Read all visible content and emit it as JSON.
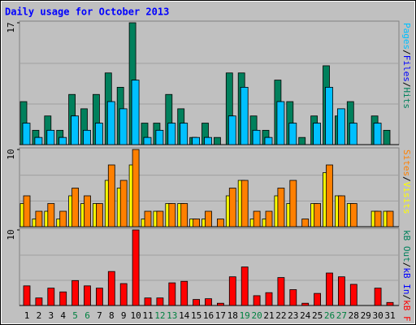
{
  "title": "Daily usage for October 2013",
  "legend_separator": "/",
  "weekend_days": [
    "5",
    "6",
    "12",
    "13",
    "19",
    "20",
    "26",
    "27"
  ],
  "weekend_color": "#008040",
  "chart_data": [
    {
      "type": "bar",
      "ylim": [
        0,
        17
      ],
      "yticks": [
        17
      ],
      "series": [
        {
          "name": "Hits",
          "color": "#00805c",
          "values": [
            6,
            2,
            4,
            2,
            7,
            5,
            7,
            10,
            8,
            17,
            3,
            3,
            7,
            5,
            1,
            3,
            1,
            10,
            10,
            4,
            2,
            9,
            6,
            1,
            4,
            11,
            4,
            6,
            0,
            4,
            2
          ]
        },
        {
          "name": "Files",
          "color": "#0000ff",
          "values": [
            3,
            1,
            2,
            1,
            4,
            2,
            3,
            6,
            5,
            9,
            1,
            2,
            3,
            3,
            1,
            1,
            0,
            4,
            8,
            2,
            1,
            6,
            3,
            0,
            3,
            8,
            5,
            3,
            0,
            3,
            0
          ]
        },
        {
          "name": "Pages",
          "color": "#00c0ff",
          "values": [
            3,
            1,
            2,
            1,
            4,
            2,
            3,
            6,
            5,
            9,
            1,
            2,
            3,
            3,
            1,
            1,
            0,
            4,
            8,
            2,
            1,
            6,
            3,
            0,
            3,
            8,
            5,
            3,
            0,
            3,
            0
          ]
        }
      ]
    },
    {
      "type": "bar",
      "ylim": [
        0,
        10
      ],
      "yticks": [
        10
      ],
      "series": [
        {
          "name": "Visits",
          "color": "#ffff00",
          "values": [
            3,
            1,
            2,
            1,
            4,
            3,
            3,
            6,
            5,
            8,
            1,
            2,
            3,
            3,
            1,
            1,
            0,
            4,
            6,
            1,
            1,
            4,
            3,
            0,
            3,
            7,
            4,
            3,
            0,
            2,
            2
          ]
        },
        {
          "name": "Sites",
          "color": "#ff8000",
          "values": [
            4,
            2,
            3,
            2,
            5,
            4,
            3,
            8,
            6,
            10,
            2,
            2,
            3,
            3,
            1,
            2,
            1,
            5,
            6,
            2,
            2,
            5,
            6,
            1,
            3,
            8,
            4,
            3,
            0,
            2,
            2
          ]
        }
      ]
    },
    {
      "type": "bar",
      "ylim": [
        0,
        10
      ],
      "yticks": [
        10
      ],
      "categories": [
        "1",
        "2",
        "3",
        "4",
        "5",
        "6",
        "7",
        "8",
        "9",
        "10",
        "11",
        "12",
        "13",
        "14",
        "15",
        "16",
        "17",
        "18",
        "19",
        "20",
        "21",
        "22",
        "23",
        "24",
        "25",
        "26",
        "27",
        "28",
        "29",
        "30",
        "31"
      ],
      "series": [
        {
          "name": "kB F",
          "color": "#ff0000",
          "values": [
            2.6,
            1,
            2.3,
            1.8,
            3.3,
            2.6,
            2.3,
            4.5,
            2.9,
            10,
            1,
            1,
            3,
            3.2,
            0.8,
            0.9,
            0.3,
            3.8,
            5.1,
            1.3,
            1.7,
            3.7,
            2.1,
            0.3,
            1.6,
            4.3,
            3.8,
            2.8,
            0,
            2.3,
            0.4
          ]
        },
        {
          "name": "kB In",
          "color": "#0000ff",
          "values": [
            0,
            0,
            0,
            0,
            0,
            0,
            0,
            0,
            0,
            0,
            0,
            0,
            0,
            0,
            0,
            0,
            0,
            0,
            0,
            0,
            0,
            0,
            0,
            0,
            0,
            0,
            0,
            0,
            0,
            0,
            0
          ]
        },
        {
          "name": "kB Out",
          "color": "#00805c",
          "values": [
            0,
            0,
            0,
            0,
            0,
            0,
            0,
            0,
            0,
            0,
            0,
            0,
            0,
            0,
            0,
            0,
            0,
            0,
            0,
            0,
            0,
            0,
            0,
            0,
            0,
            0,
            0,
            0,
            0,
            0,
            0
          ]
        }
      ]
    }
  ]
}
